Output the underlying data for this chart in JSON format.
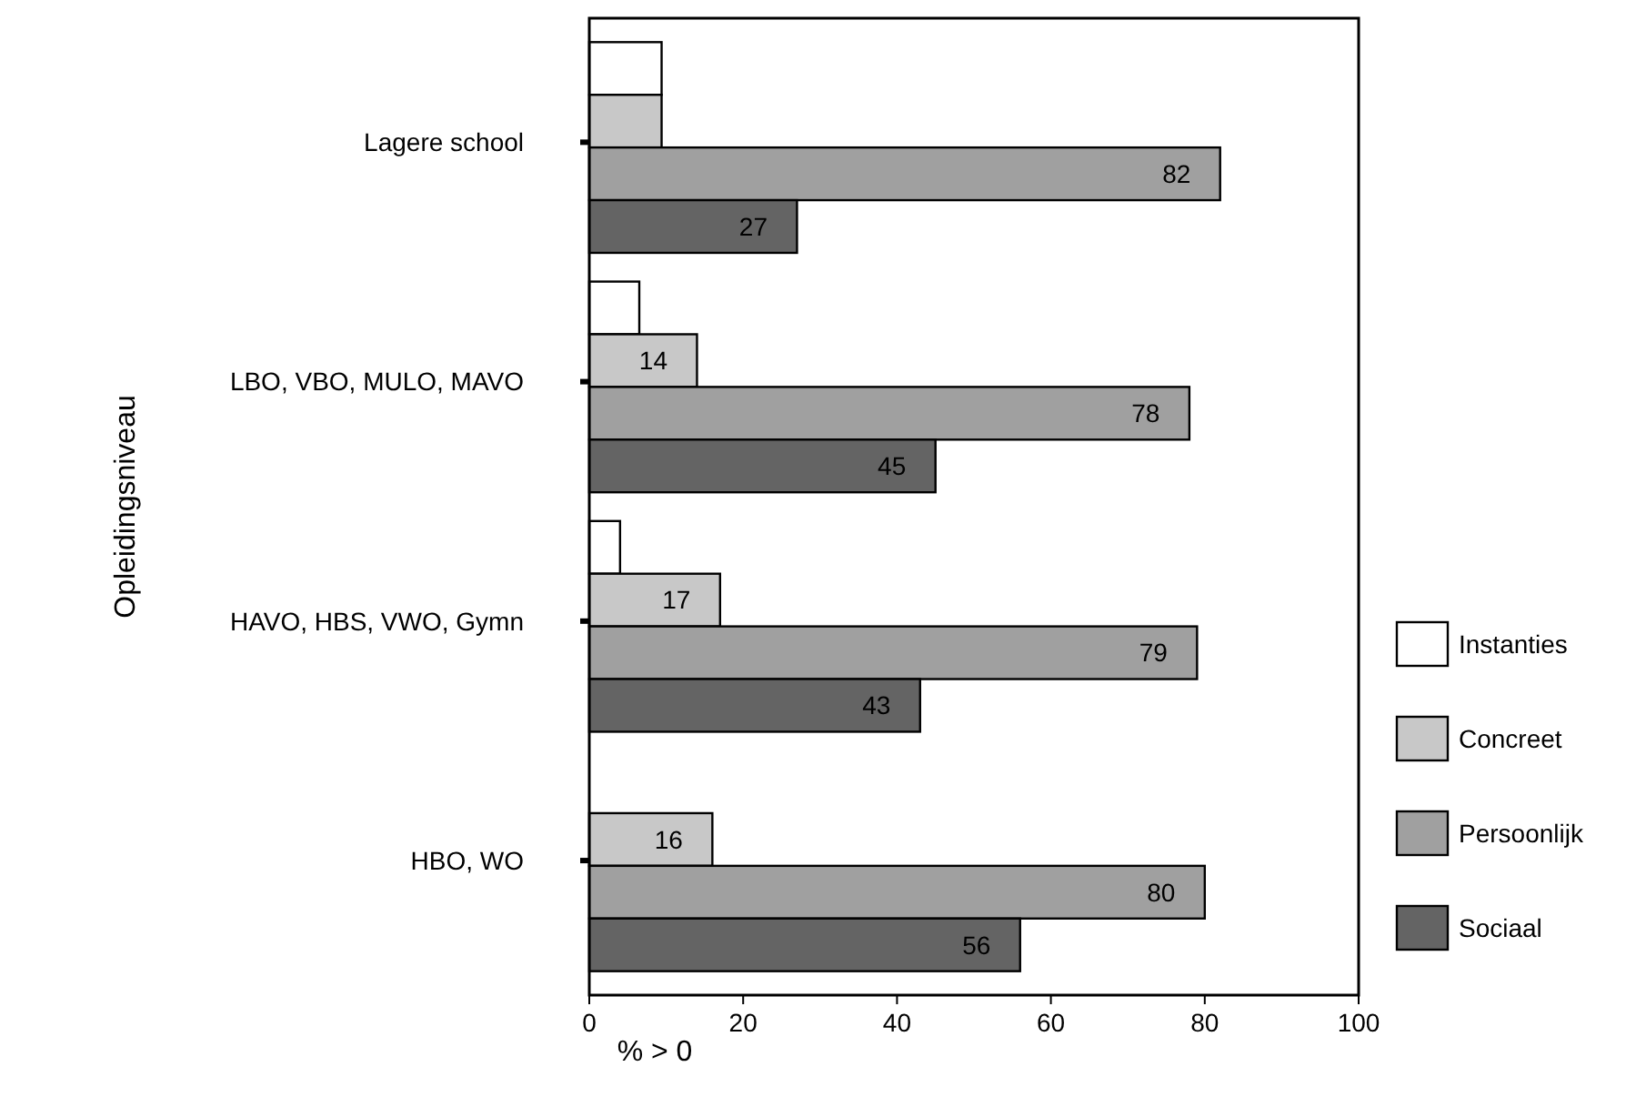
{
  "chart_data": {
    "type": "bar",
    "orientation": "horizontal",
    "xlabel": "% > 0",
    "ylabel": "Opleidingsniveau",
    "categories": [
      "Lagere school",
      "LBO, VBO, MULO, MAVO",
      "HAVO, HBS, VWO, Gymn",
      "HBO, WO"
    ],
    "series": [
      {
        "name": "Instanties",
        "color": "#ffffff",
        "values": [
          9.4,
          6.5,
          4,
          0
        ],
        "value_labels": [
          null,
          null,
          null,
          null
        ]
      },
      {
        "name": "Concreet",
        "color": "#c8c8c8",
        "values": [
          9.4,
          14,
          17,
          16
        ],
        "value_labels": [
          null,
          "14",
          "17",
          "16"
        ]
      },
      {
        "name": "Persoonlijk",
        "color": "#a0a0a0",
        "values": [
          82,
          78,
          79,
          80
        ],
        "value_labels": [
          "82",
          "78",
          "79",
          "80"
        ]
      },
      {
        "name": "Sociaal",
        "color": "#646464",
        "values": [
          27,
          45,
          43,
          56
        ],
        "value_labels": [
          "27",
          "45",
          "43",
          "56"
        ]
      }
    ],
    "xlim": [
      0,
      100
    ],
    "xticks": [
      0,
      20,
      40,
      60,
      80,
      100
    ],
    "grid": false,
    "legend": "right"
  }
}
